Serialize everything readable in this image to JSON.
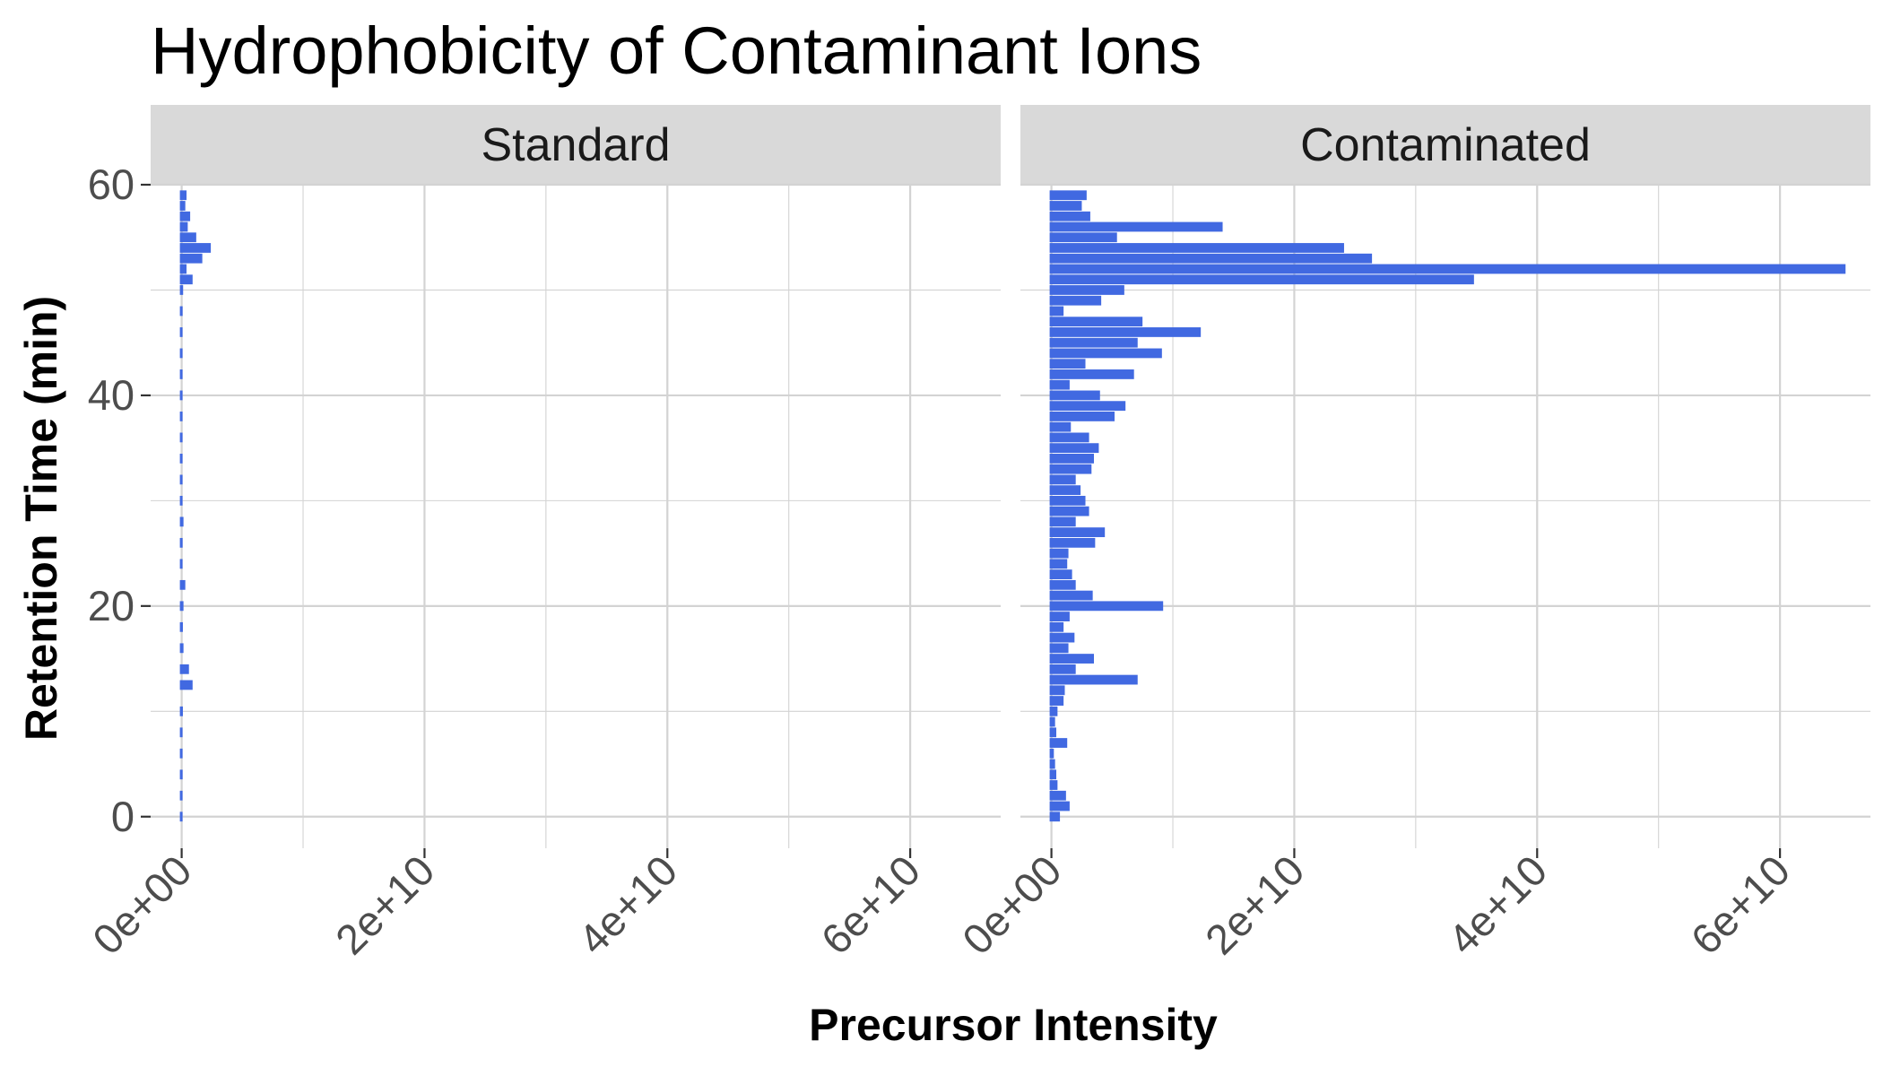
{
  "chart_data": {
    "type": "bar",
    "orientation": "horizontal",
    "title": "Hydrophobicity of Contaminant Ions",
    "xlabel": "Precursor Intensity",
    "ylabel": "Retention Time (min)",
    "xlim": [
      0,
      65000000000
    ],
    "ylim": [
      -3,
      60
    ],
    "x_ticks": [
      0,
      20000000000,
      40000000000,
      60000000000
    ],
    "x_tick_labels": [
      "0e+00",
      "2e+10",
      "4e+10",
      "6e+10"
    ],
    "y_ticks": [
      0,
      20,
      40,
      60
    ],
    "y_tick_labels": [
      "0",
      "20",
      "40",
      "60"
    ],
    "grid": true,
    "bar_color": "#4169E1",
    "facets": [
      {
        "name": "Standard",
        "bars": [
          {
            "y": 0,
            "x": 50000000
          },
          {
            "y": 2,
            "x": 60000000
          },
          {
            "y": 4,
            "x": 80000000
          },
          {
            "y": 6,
            "x": 70000000
          },
          {
            "y": 8,
            "x": 60000000
          },
          {
            "y": 10,
            "x": 100000000
          },
          {
            "y": 12.5,
            "x": 900000000
          },
          {
            "y": 14,
            "x": 600000000
          },
          {
            "y": 16,
            "x": 150000000
          },
          {
            "y": 18,
            "x": 100000000
          },
          {
            "y": 20,
            "x": 150000000
          },
          {
            "y": 22,
            "x": 300000000
          },
          {
            "y": 24,
            "x": 60000000
          },
          {
            "y": 26,
            "x": 80000000
          },
          {
            "y": 28,
            "x": 150000000
          },
          {
            "y": 30,
            "x": 60000000
          },
          {
            "y": 32,
            "x": 50000000
          },
          {
            "y": 34,
            "x": 40000000
          },
          {
            "y": 36,
            "x": 50000000
          },
          {
            "y": 38,
            "x": 40000000
          },
          {
            "y": 40,
            "x": 30000000
          },
          {
            "y": 42,
            "x": 50000000
          },
          {
            "y": 44,
            "x": 60000000
          },
          {
            "y": 46,
            "x": 40000000
          },
          {
            "y": 48,
            "x": 80000000
          },
          {
            "y": 50,
            "x": 120000000
          },
          {
            "y": 51,
            "x": 900000000
          },
          {
            "y": 52,
            "x": 400000000
          },
          {
            "y": 53,
            "x": 1700000000
          },
          {
            "y": 54,
            "x": 2400000000
          },
          {
            "y": 55,
            "x": 1200000000
          },
          {
            "y": 56,
            "x": 500000000
          },
          {
            "y": 57,
            "x": 700000000
          },
          {
            "y": 58,
            "x": 300000000
          },
          {
            "y": 59,
            "x": 400000000
          }
        ]
      },
      {
        "name": "Contaminated",
        "bars": [
          {
            "y": 0,
            "x": 700000000
          },
          {
            "y": 1,
            "x": 1500000000
          },
          {
            "y": 2,
            "x": 1200000000
          },
          {
            "y": 3,
            "x": 500000000
          },
          {
            "y": 4,
            "x": 400000000
          },
          {
            "y": 5,
            "x": 300000000
          },
          {
            "y": 6,
            "x": 200000000
          },
          {
            "y": 7,
            "x": 1300000000
          },
          {
            "y": 8,
            "x": 400000000
          },
          {
            "y": 9,
            "x": 300000000
          },
          {
            "y": 10,
            "x": 500000000
          },
          {
            "y": 11,
            "x": 1000000000
          },
          {
            "y": 12,
            "x": 1100000000
          },
          {
            "y": 13,
            "x": 7100000000
          },
          {
            "y": 14,
            "x": 2000000000
          },
          {
            "y": 15,
            "x": 3500000000
          },
          {
            "y": 16,
            "x": 1400000000
          },
          {
            "y": 17,
            "x": 1900000000
          },
          {
            "y": 18,
            "x": 1000000000
          },
          {
            "y": 19,
            "x": 1500000000
          },
          {
            "y": 20,
            "x": 9200000000
          },
          {
            "y": 21,
            "x": 3400000000
          },
          {
            "y": 22,
            "x": 2000000000
          },
          {
            "y": 23,
            "x": 1700000000
          },
          {
            "y": 24,
            "x": 1300000000
          },
          {
            "y": 25,
            "x": 1400000000
          },
          {
            "y": 26,
            "x": 3600000000
          },
          {
            "y": 27,
            "x": 4400000000
          },
          {
            "y": 28,
            "x": 2000000000
          },
          {
            "y": 29,
            "x": 3100000000
          },
          {
            "y": 30,
            "x": 2800000000
          },
          {
            "y": 31,
            "x": 2400000000
          },
          {
            "y": 32,
            "x": 2000000000
          },
          {
            "y": 33,
            "x": 3300000000
          },
          {
            "y": 34,
            "x": 3500000000
          },
          {
            "y": 35,
            "x": 3900000000
          },
          {
            "y": 36,
            "x": 3100000000
          },
          {
            "y": 37,
            "x": 1600000000
          },
          {
            "y": 38,
            "x": 5200000000
          },
          {
            "y": 39,
            "x": 6100000000
          },
          {
            "y": 40,
            "x": 4000000000
          },
          {
            "y": 41,
            "x": 1500000000
          },
          {
            "y": 42,
            "x": 6800000000
          },
          {
            "y": 43,
            "x": 2800000000
          },
          {
            "y": 44,
            "x": 9100000000
          },
          {
            "y": 45,
            "x": 7100000000
          },
          {
            "y": 46,
            "x": 12300000000
          },
          {
            "y": 47,
            "x": 7500000000
          },
          {
            "y": 48,
            "x": 1000000000
          },
          {
            "y": 49,
            "x": 4100000000
          },
          {
            "y": 50,
            "x": 6000000000
          },
          {
            "y": 51,
            "x": 34800000000
          },
          {
            "y": 52,
            "x": 65400000000
          },
          {
            "y": 53,
            "x": 26400000000
          },
          {
            "y": 54,
            "x": 24100000000
          },
          {
            "y": 55,
            "x": 5400000000
          },
          {
            "y": 56,
            "x": 14100000000
          },
          {
            "y": 57,
            "x": 3200000000
          },
          {
            "y": 58,
            "x": 2500000000
          },
          {
            "y": 59,
            "x": 2900000000
          }
        ]
      }
    ]
  }
}
